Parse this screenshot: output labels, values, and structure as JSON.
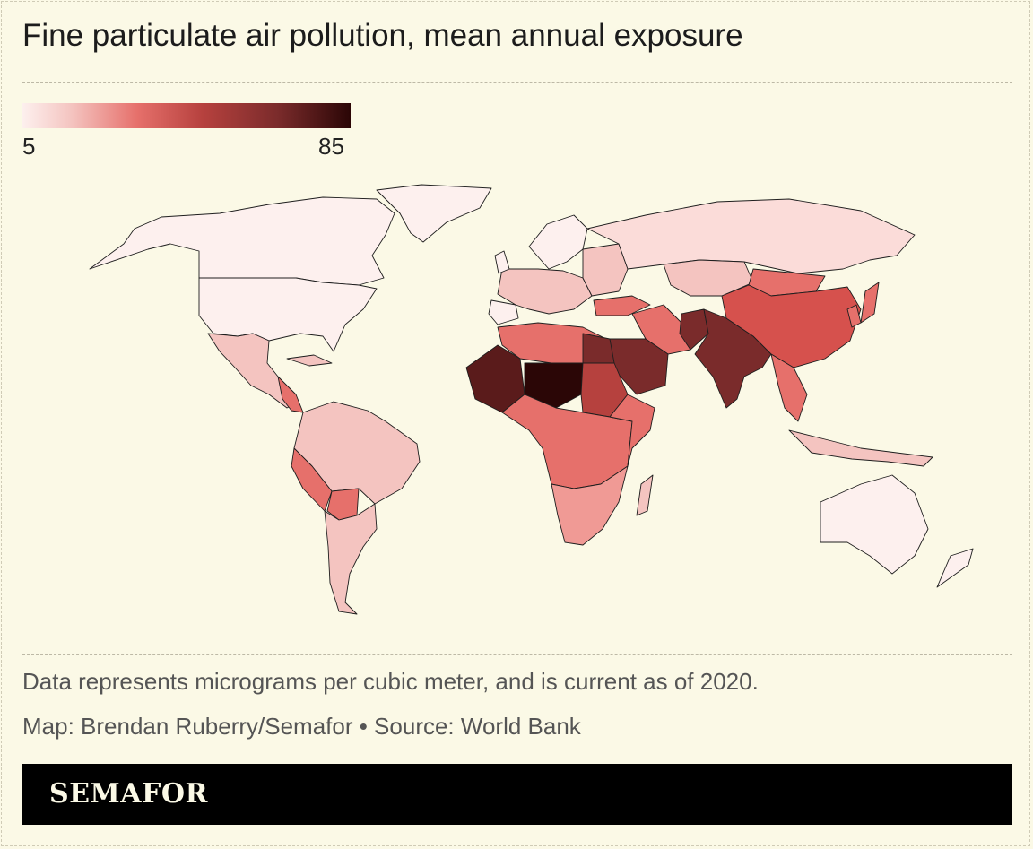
{
  "title": "Fine particulate air pollution, mean annual exposure",
  "legend": {
    "min_label": "5",
    "max_label": "85",
    "min": 5,
    "max": 85,
    "colors": [
      "#fdf0ee",
      "#f4c4c0",
      "#e6706b",
      "#b6413e",
      "#7a2b2b",
      "#2b0606"
    ]
  },
  "note": "Data represents micrograms per cubic meter, and is current as of 2020.",
  "credit": "Map: Brendan Ruberry/Semafor • Source: World Bank",
  "brand": "SEMAFOR",
  "colors": {
    "background": "#fbf9e6",
    "brand_bar": "#000000",
    "border": "#1e1e1e"
  }
}
